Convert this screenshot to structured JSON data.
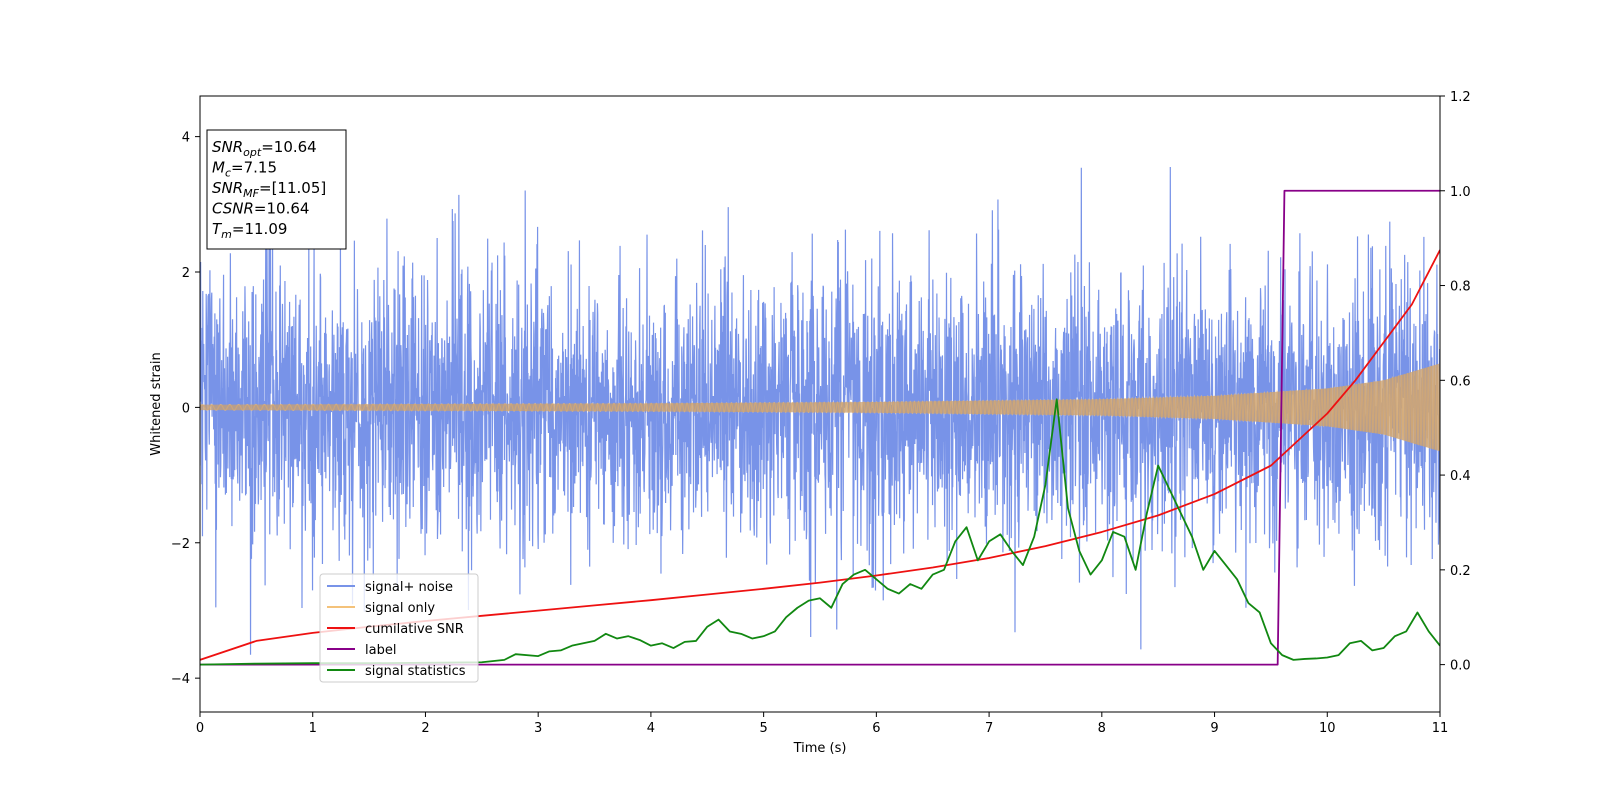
{
  "chart_data": {
    "type": "line",
    "xlabel": "Time (s)",
    "ylabel": "Whitened strain",
    "xlim": [
      0,
      11
    ],
    "ylim": [
      -4.5,
      4.6
    ],
    "y2lim": [
      -0.1,
      1.2
    ],
    "x_ticks": [
      "0",
      "1",
      "2",
      "3",
      "4",
      "5",
      "6",
      "7",
      "8",
      "9",
      "10",
      "11"
    ],
    "y_ticks": [
      "−4",
      "−2",
      "0",
      "2",
      "4"
    ],
    "y2_ticks": [
      "0.0",
      "0.2",
      "0.4",
      "0.6",
      "0.8",
      "1.0",
      "1.2"
    ],
    "annotation": {
      "lines": [
        {
          "base": "SNR",
          "sub": "opt",
          "rest": "=10.64"
        },
        {
          "base": "M",
          "sub": "c",
          "rest": "=7.15"
        },
        {
          "base": "SNR",
          "sub": "MF",
          "rest": "=[11.05]"
        },
        {
          "base": "CSNR",
          "sub": "",
          "rest": "=10.64"
        },
        {
          "base": "T",
          "sub": "m",
          "rest": "=11.09"
        }
      ]
    },
    "legend_position": "lower-left",
    "series": [
      {
        "name": "signal+ noise",
        "color": "#7893e8",
        "axis": "left",
        "description_values": {
          "noise_sigma": 1.0,
          "typical_range": [
            -4.1,
            4.2
          ]
        }
      },
      {
        "name": "signal only",
        "color": "#f4c27a",
        "axis": "left",
        "amplitude_envelope": {
          "x": [
            0,
            2,
            4,
            6,
            8,
            9,
            10,
            10.5,
            11
          ],
          "y": [
            0.04,
            0.05,
            0.06,
            0.08,
            0.12,
            0.17,
            0.28,
            0.4,
            0.65
          ]
        }
      },
      {
        "name": "cumilative SNR",
        "color": "#ee1111",
        "axis": "right",
        "x": [
          0,
          0.5,
          1,
          1.5,
          2,
          2.5,
          3,
          3.5,
          4,
          4.5,
          5,
          5.5,
          6,
          6.5,
          7,
          7.5,
          8,
          8.5,
          9,
          9.5,
          10,
          10.25,
          10.5,
          10.75,
          11
        ],
        "y": [
          0.01,
          0.05,
          0.067,
          0.08,
          0.092,
          0.103,
          0.114,
          0.125,
          0.136,
          0.148,
          0.16,
          0.173,
          0.188,
          0.205,
          0.225,
          0.25,
          0.28,
          0.315,
          0.36,
          0.42,
          0.53,
          0.6,
          0.68,
          0.76,
          0.875
        ]
      },
      {
        "name": "label",
        "color": "#880088",
        "axis": "right",
        "x": [
          0,
          9.56,
          9.62,
          11
        ],
        "y": [
          0,
          0,
          1,
          1
        ]
      },
      {
        "name": "signal statistics",
        "color": "#118811",
        "axis": "right",
        "x": [
          0,
          0.5,
          1,
          1.5,
          2,
          2.5,
          2.7,
          2.8,
          3.0,
          3.1,
          3.2,
          3.3,
          3.4,
          3.5,
          3.6,
          3.7,
          3.8,
          3.9,
          4.0,
          4.1,
          4.2,
          4.3,
          4.4,
          4.5,
          4.6,
          4.7,
          4.8,
          4.9,
          5.0,
          5.1,
          5.2,
          5.3,
          5.4,
          5.5,
          5.6,
          5.7,
          5.8,
          5.9,
          6.0,
          6.1,
          6.2,
          6.3,
          6.4,
          6.5,
          6.6,
          6.7,
          6.8,
          6.9,
          7.0,
          7.1,
          7.2,
          7.3,
          7.4,
          7.5,
          7.6,
          7.7,
          7.8,
          7.9,
          8.0,
          8.1,
          8.2,
          8.3,
          8.4,
          8.5,
          8.6,
          8.7,
          8.8,
          8.9,
          9.0,
          9.1,
          9.2,
          9.3,
          9.4,
          9.5,
          9.6,
          9.7,
          9.8,
          9.9,
          10.0,
          10.1,
          10.2,
          10.3,
          10.4,
          10.5,
          10.6,
          10.7,
          10.8,
          10.9,
          11.0
        ],
        "y": [
          0.0,
          0.002,
          0.003,
          0.003,
          0.004,
          0.005,
          0.01,
          0.022,
          0.018,
          0.028,
          0.03,
          0.04,
          0.045,
          0.05,
          0.065,
          0.055,
          0.06,
          0.052,
          0.04,
          0.045,
          0.035,
          0.048,
          0.05,
          0.08,
          0.095,
          0.07,
          0.065,
          0.055,
          0.06,
          0.07,
          0.1,
          0.12,
          0.135,
          0.14,
          0.12,
          0.17,
          0.19,
          0.2,
          0.18,
          0.16,
          0.15,
          0.17,
          0.16,
          0.19,
          0.2,
          0.26,
          0.29,
          0.22,
          0.26,
          0.275,
          0.24,
          0.21,
          0.27,
          0.38,
          0.56,
          0.33,
          0.24,
          0.19,
          0.22,
          0.28,
          0.27,
          0.2,
          0.32,
          0.42,
          0.37,
          0.32,
          0.27,
          0.2,
          0.24,
          0.21,
          0.18,
          0.13,
          0.11,
          0.045,
          0.02,
          0.01,
          0.012,
          0.013,
          0.015,
          0.02,
          0.045,
          0.05,
          0.03,
          0.035,
          0.06,
          0.07,
          0.11,
          0.07,
          0.04
        ]
      }
    ]
  }
}
